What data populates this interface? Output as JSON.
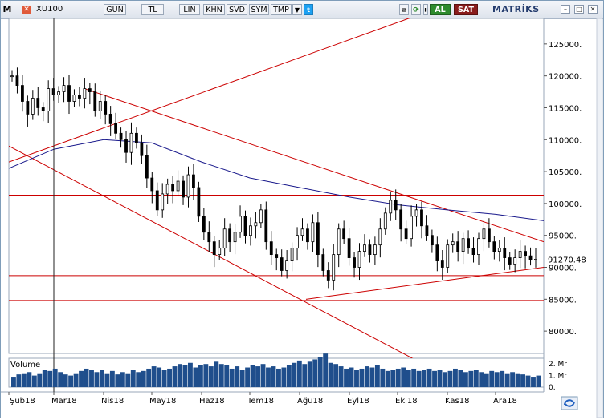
{
  "toolbar": {
    "app_icon": "M",
    "symbol": "XU100",
    "buttons": [
      "GUN",
      "TL",
      "LIN",
      "KHN",
      "SVD",
      "SYM",
      "TMP"
    ],
    "buy_label": "AL",
    "sell_label": "SAT",
    "brand": "MATRİKS",
    "colors": {
      "buy": "#2e8b2e",
      "sell": "#8a1c1c"
    },
    "icons": [
      "close-icon",
      "dropdown-icon",
      "twitter-icon",
      "copy-icon",
      "refresh-icon",
      "chart-settings-icon",
      "minimize-icon",
      "maximize-icon",
      "close-window-icon"
    ]
  },
  "chart_data": {
    "type": "candlestick",
    "title": "",
    "price_axis": {
      "ticks": [
        "125000.",
        "120000.",
        "115000.",
        "110000.",
        "105000.",
        "100000.",
        "95000.",
        "90000.",
        "85000.",
        "80000."
      ],
      "ylim": [
        76500,
        129000
      ]
    },
    "last_price_label": "91270.48",
    "volume_panel": {
      "label": "Volume",
      "ticks": [
        "2. Mr",
        "1. Mr",
        "0."
      ],
      "ylim": [
        0,
        2500000000
      ]
    },
    "x_tick_labels": [
      "Şub18",
      "Mar18",
      "Nis18",
      "May18",
      "Haz18",
      "Tem18",
      "Ağu18",
      "Eyl18",
      "Eki18",
      "Kas18",
      "Ara18"
    ],
    "grid": false,
    "colors": {
      "candles": "#000000",
      "moving_average": "#1a1a8c",
      "trendlines": "#cc0000",
      "volume": "#1f4e8c"
    },
    "close_series": {
      "start": "2018-02-01",
      "end": "2018-12-31",
      "values": [
        120000,
        118500,
        116000,
        114000,
        116500,
        115000,
        114500,
        118000,
        117000,
        117500,
        118500,
        116000,
        117000,
        116500,
        118000,
        117500,
        114500,
        116000,
        114000,
        112500,
        111000,
        110000,
        108000,
        111000,
        109500,
        107500,
        104000,
        102000,
        99000,
        101500,
        103000,
        102000,
        103500,
        101000,
        104500,
        102500,
        98000,
        95500,
        94000,
        92000,
        93000,
        96000,
        94000,
        95500,
        98000,
        95000,
        96500,
        97000,
        99000,
        94000,
        92000,
        91500,
        89500,
        91000,
        93000,
        95000,
        96000,
        94000,
        97000,
        92000,
        89500,
        88000,
        92000,
        96000,
        94500,
        91500,
        90000,
        92500,
        93500,
        92000,
        93500,
        96000,
        98500,
        100500,
        99000,
        96000,
        94500,
        98000,
        99000,
        96500,
        95000,
        93500,
        91000,
        90000,
        93500,
        94000,
        92500,
        94500,
        93000,
        92000,
        94500,
        96000,
        94000,
        92500,
        93000,
        91500,
        90500,
        91500,
        92500,
        91800,
        91200,
        91270
      ]
    },
    "volume_series": [
      0.9,
      1.1,
      1.2,
      1.3,
      1.0,
      1.2,
      1.5,
      1.4,
      1.6,
      1.3,
      1.1,
      1.0,
      1.2,
      1.4,
      1.6,
      1.5,
      1.3,
      1.5,
      1.2,
      1.4,
      1.1,
      1.3,
      1.2,
      1.5,
      1.3,
      1.4,
      1.6,
      1.8,
      1.7,
      1.5,
      1.6,
      1.8,
      2.0,
      1.9,
      2.1,
      1.7,
      1.9,
      2.0,
      1.8,
      2.2,
      2.0,
      1.9,
      1.6,
      1.8,
      1.5,
      1.7,
      1.9,
      1.8,
      2.0,
      1.7,
      1.8,
      1.6,
      1.7,
      1.9,
      2.1,
      2.3,
      2.0,
      2.2,
      2.4,
      2.6,
      2.9,
      2.1,
      2.0,
      1.8,
      1.6,
      1.7,
      1.5,
      1.6,
      1.8,
      1.7,
      1.9,
      1.6,
      1.4,
      1.5,
      1.6,
      1.7,
      1.5,
      1.6,
      1.4,
      1.5,
      1.6,
      1.4,
      1.5,
      1.3,
      1.4,
      1.6,
      1.5,
      1.3,
      1.4,
      1.5,
      1.3,
      1.2,
      1.4,
      1.3,
      1.4,
      1.2,
      1.3,
      1.2,
      1.1,
      1.0,
      0.9,
      1.0
    ],
    "moving_average": {
      "points": [
        [
          "2018-02-01",
          105500
        ],
        [
          "2018-03-01",
          108500
        ],
        [
          "2018-04-01",
          110000
        ],
        [
          "2018-05-01",
          109500
        ],
        [
          "2018-06-01",
          106500
        ],
        [
          "2018-07-01",
          104000
        ],
        [
          "2018-08-01",
          102500
        ],
        [
          "2018-09-01",
          101000
        ],
        [
          "2018-10-01",
          99800
        ],
        [
          "2018-11-01",
          99000
        ],
        [
          "2018-12-01",
          98300
        ],
        [
          "2018-12-31",
          97300
        ]
      ]
    },
    "trendlines": [
      {
        "x": [
          "2018-02-01",
          "2018-10-19"
        ],
        "y": [
          106500,
          130000
        ]
      },
      {
        "x": [
          "2018-02-01",
          "2018-10-12"
        ],
        "y": [
          109000,
          75500
        ]
      },
      {
        "x": [
          "2018-03-20",
          "2018-12-31"
        ],
        "y": [
          118000,
          94000
        ]
      },
      {
        "x": [
          "2018-08-05",
          "2018-12-31"
        ],
        "y": [
          85000,
          90000
        ]
      },
      {
        "x": [
          "2018-02-01",
          "2018-12-31"
        ],
        "y": [
          101300,
          101300
        ]
      },
      {
        "x": [
          "2018-02-01",
          "2018-12-31"
        ],
        "y": [
          88700,
          88700
        ]
      },
      {
        "x": [
          "2018-02-01",
          "2018-12-31"
        ],
        "y": [
          84800,
          84800
        ]
      }
    ],
    "crosshair_x": "2018-03-01"
  }
}
